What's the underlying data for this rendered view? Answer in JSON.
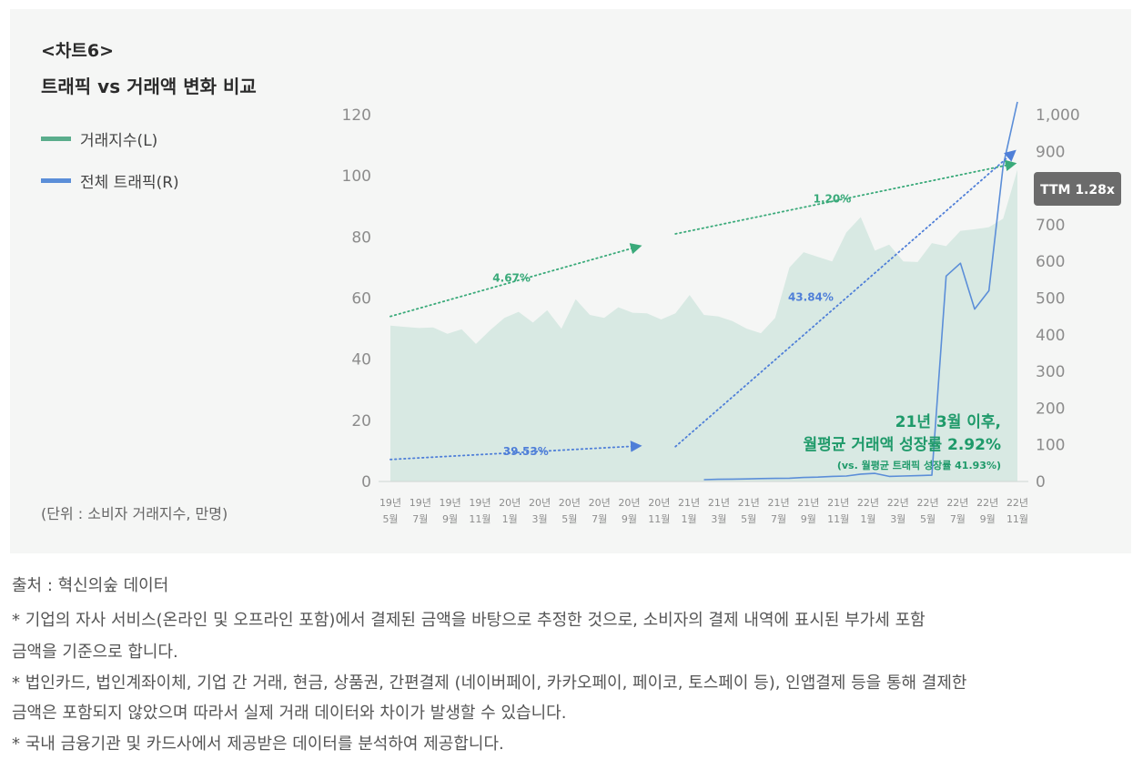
{
  "header": {
    "chart_no": "<차트6>",
    "title": "트래픽 vs 거래액 변화 비교"
  },
  "legend": [
    {
      "label": "거래지수(L)",
      "color": "#5aad8c"
    },
    {
      "label": "전체 트래픽(R)",
      "color": "#5b8ed8"
    }
  ],
  "unit_note": "(단위 : 소비자 거래지수, 만명)",
  "colors": {
    "area_fill": "#d8e9e3",
    "traffic_line": "#5b8ed8",
    "green_arrow": "#3aaa7a",
    "blue_arrow": "#4f7fd8",
    "badge_bg": "#6b6b6b",
    "highlight_text": "#1f9a6a"
  },
  "chart_data": {
    "type": "area",
    "x_tick_labels": [
      [
        "19년",
        "5월"
      ],
      [
        "19년",
        "7월"
      ],
      [
        "19년",
        "9월"
      ],
      [
        "19년",
        "11월"
      ],
      [
        "20년",
        "1월"
      ],
      [
        "20년",
        "3월"
      ],
      [
        "20년",
        "5월"
      ],
      [
        "20년",
        "7월"
      ],
      [
        "20년",
        "9월"
      ],
      [
        "20년",
        "11월"
      ],
      [
        "21년",
        "1월"
      ],
      [
        "21년",
        "3월"
      ],
      [
        "21년",
        "5월"
      ],
      [
        "21년",
        "7월"
      ],
      [
        "21년",
        "9월"
      ],
      [
        "21년",
        "11월"
      ],
      [
        "22년",
        "1월"
      ],
      [
        "22년",
        "3월"
      ],
      [
        "22년",
        "5월"
      ],
      [
        "22년",
        "7월"
      ],
      [
        "22년",
        "9월"
      ],
      [
        "22년",
        "11월"
      ]
    ],
    "y_left": {
      "min": 0,
      "max": 120,
      "ticks": [
        0,
        20,
        40,
        60,
        80,
        100,
        120
      ],
      "tick_labels": [
        "0",
        "20",
        "40",
        "60",
        "80",
        "100",
        "120"
      ]
    },
    "y_right": {
      "min": 0,
      "max": 1000,
      "ticks": [
        0,
        100,
        200,
        300,
        400,
        500,
        600,
        700,
        800,
        900,
        1000
      ],
      "tick_labels": [
        "0",
        "100",
        "200",
        "300",
        "400",
        "500",
        "600",
        "700",
        "800",
        "900",
        "1,000"
      ]
    },
    "series": [
      {
        "name": "거래지수(L)",
        "axis": "left",
        "type": "area",
        "start_index": 0,
        "values": [
          51,
          50.6,
          50.2,
          50.4,
          48.3,
          49.8,
          45,
          49.5,
          53.5,
          55.5,
          52,
          56,
          50,
          59.6,
          54.5,
          53.5,
          57,
          55.2,
          55,
          53,
          55,
          61,
          54.5,
          54,
          52.5,
          50,
          48.5,
          53.5,
          70,
          75,
          73.5,
          72,
          81.5,
          86.5,
          75.5,
          77.5,
          72,
          71.8,
          78,
          77,
          82,
          82.5,
          83.2,
          86,
          102
        ]
      },
      {
        "name": "전체 트래픽(R)",
        "axis": "right",
        "type": "line",
        "start_index": 22,
        "values": [
          5,
          6,
          6.5,
          7,
          8,
          8.5,
          9,
          11,
          12,
          14,
          15,
          20,
          22,
          14,
          15,
          16,
          17,
          560,
          595,
          470,
          520,
          860,
          1035
        ]
      }
    ],
    "annotations": [
      {
        "text": "4.67%",
        "axis": "left",
        "from": [
          0,
          54
        ],
        "to": [
          17.5,
          77
        ],
        "color": "green",
        "label_pos": [
          8.5,
          66.5
        ]
      },
      {
        "text": "1.20%",
        "axis": "left",
        "from": [
          20,
          81
        ],
        "to": [
          43.8,
          104
        ],
        "color": "green",
        "label_pos": [
          31,
          92.5
        ]
      },
      {
        "text": "39.53%",
        "axis": "right",
        "from": [
          0,
          60
        ],
        "to": [
          17.5,
          97
        ],
        "color": "blue",
        "label_pos": [
          9.5,
          82
        ]
      },
      {
        "text": "43.84%",
        "axis": "right",
        "from": [
          20,
          95
        ],
        "to": [
          43.8,
          900
        ],
        "color": "blue",
        "label_pos": [
          29.5,
          502
        ]
      }
    ],
    "highlight": {
      "line1": "21년 3월 이후,",
      "line2": "월평균 거래액 성장률 2.92%",
      "line3": "(vs. 월평균 트래픽 성장률 41.93%)"
    },
    "badge": "TTM 1.28x"
  },
  "footer": {
    "source": "출처 : 혁신의숲 데이터",
    "notes": [
      "* 기업의 자사 서비스(온라인 및 오프라인 포함)에서 결제된 금액을 바탕으로 추정한 것으로, 소비자의 결제 내역에 표시된 부가세 포함",
      "금액을 기준으로 합니다.",
      "* 법인카드, 법인계좌이체, 기업 간 거래, 현금, 상품권, 간편결제 (네이버페이, 카카오페이, 페이코, 토스페이 등), 인앱결제 등을 통해 결제한",
      "금액은 포함되지 않았으며 따라서 실제 거래 데이터와 차이가 발생할 수 있습니다.",
      "* 국내 금융기관 및 카드사에서 제공받은 데이터를 분석하여 제공합니다."
    ]
  }
}
